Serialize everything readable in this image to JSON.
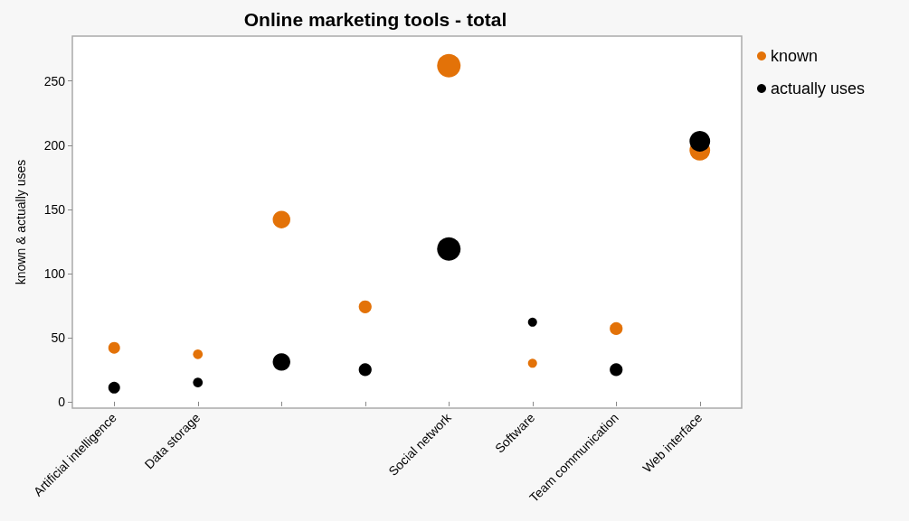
{
  "chart_data": {
    "type": "bubble",
    "title": "Online marketing tools - total",
    "ylabel": "known & actually uses",
    "categories": [
      "Artificial intelligence",
      "Data storage",
      null,
      null,
      "Social network",
      "Software",
      "Team communication",
      "Web interface"
    ],
    "series": [
      {
        "name": "known",
        "color": "#e37208",
        "values": [
          42,
          37,
          142,
          74,
          262,
          30,
          57,
          196
        ],
        "sizes": [
          0.25,
          0.17,
          0.56,
          0.3,
          1,
          0.15,
          0.3,
          0.77
        ]
      },
      {
        "name": "actually uses",
        "color": "#000000",
        "values": [
          11,
          15,
          31,
          25,
          119,
          62,
          25,
          203
        ],
        "sizes": [
          0.25,
          0.17,
          0.56,
          0.3,
          1,
          0.15,
          0.3,
          0.77
        ]
      }
    ],
    "ylim": [
      -5,
      285
    ],
    "yticks": [
      0,
      50,
      100,
      150,
      200,
      250
    ],
    "grid": false,
    "legend": "top right",
    "marker": "circle"
  }
}
